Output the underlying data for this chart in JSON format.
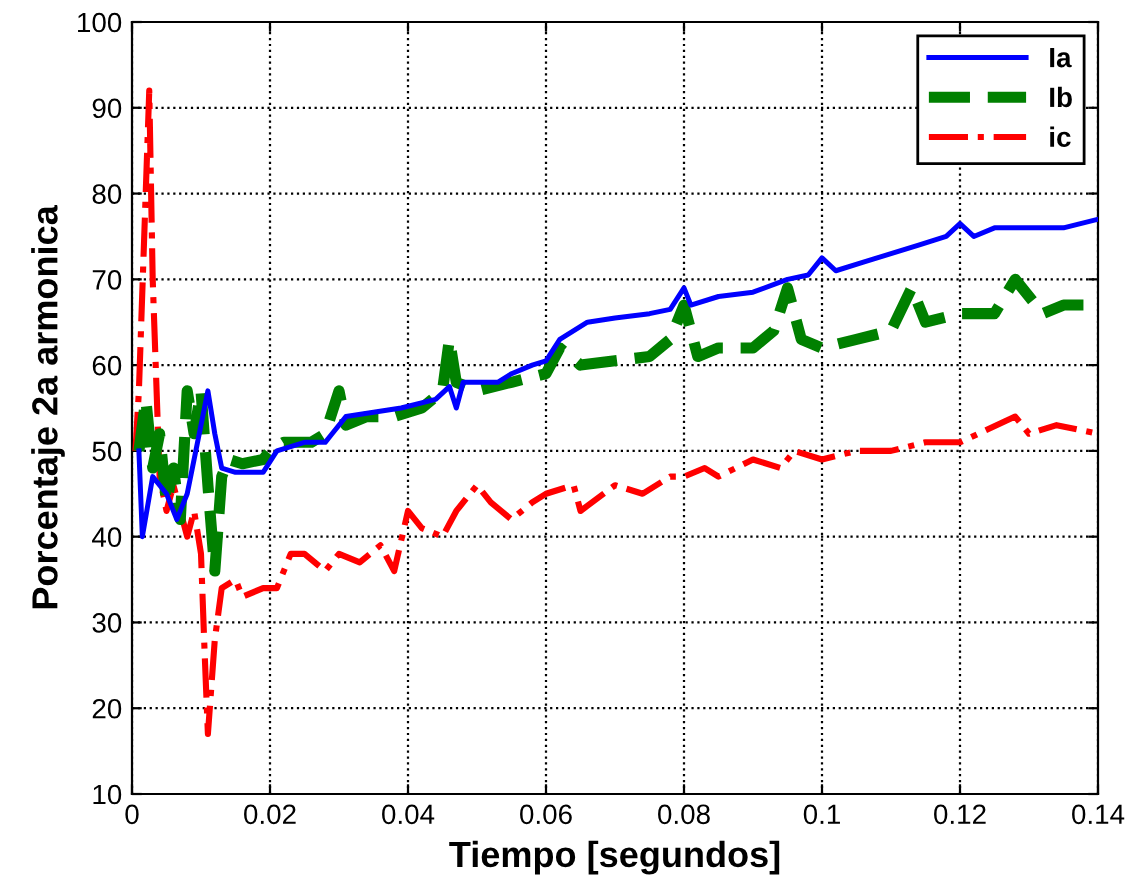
{
  "chart_data": {
    "type": "line",
    "xlabel": "Tiempo [segundos]",
    "ylabel": "Porcentaje 2a armonica",
    "xlim": [
      0,
      0.14
    ],
    "ylim": [
      10,
      100
    ],
    "xticks": [
      0,
      0.02,
      0.04,
      0.06,
      0.08,
      0.1,
      0.12,
      0.14
    ],
    "yticks": [
      10,
      20,
      30,
      40,
      50,
      60,
      70,
      80,
      90,
      100
    ],
    "grid": true,
    "legend": "top right",
    "marker": "none",
    "series": [
      {
        "name": "Ia",
        "color": "#0000ff",
        "line_style": "solid",
        "x": [
          0.001,
          0.0015,
          0.003,
          0.005,
          0.0065,
          0.008,
          0.011,
          0.012,
          0.013,
          0.015,
          0.019,
          0.021,
          0.025,
          0.028,
          0.029,
          0.031,
          0.035,
          0.039,
          0.044,
          0.046,
          0.047,
          0.048,
          0.053,
          0.055,
          0.058,
          0.06,
          0.062,
          0.066,
          0.07,
          0.075,
          0.078,
          0.08,
          0.081,
          0.085,
          0.09,
          0.095,
          0.098,
          0.1,
          0.102,
          0.106,
          0.11,
          0.114,
          0.118,
          0.12,
          0.122,
          0.125,
          0.13,
          0.135,
          0.14
        ],
        "values": [
          50,
          40,
          47,
          45,
          42,
          45,
          57,
          52,
          48,
          47.5,
          47.5,
          50,
          51,
          51,
          52,
          54,
          54.5,
          55,
          56,
          57.5,
          55,
          58,
          58,
          59,
          60,
          60.5,
          63,
          65,
          65.5,
          66,
          66.5,
          69,
          67,
          68,
          68.5,
          70,
          70.5,
          72.5,
          71,
          72,
          73,
          74,
          75,
          76.5,
          75,
          76,
          76,
          76,
          77
        ]
      },
      {
        "name": "Ib",
        "color": "#008000",
        "line_style": "dashed",
        "x": [
          0.001,
          0.002,
          0.003,
          0.004,
          0.005,
          0.006,
          0.007,
          0.008,
          0.009,
          0.01,
          0.011,
          0.012,
          0.013,
          0.014,
          0.016,
          0.019,
          0.02,
          0.022,
          0.026,
          0.028,
          0.03,
          0.031,
          0.034,
          0.038,
          0.042,
          0.045,
          0.046,
          0.047,
          0.05,
          0.055,
          0.06,
          0.062,
          0.065,
          0.07,
          0.075,
          0.078,
          0.08,
          0.082,
          0.085,
          0.09,
          0.093,
          0.095,
          0.097,
          0.1,
          0.105,
          0.11,
          0.113,
          0.115,
          0.12,
          0.125,
          0.128,
          0.132,
          0.135,
          0.14
        ],
        "values": [
          50,
          56,
          48,
          52,
          44,
          48,
          42,
          57,
          52,
          57,
          46,
          36,
          47,
          49,
          48.5,
          49,
          50,
          51,
          51,
          52,
          57,
          53,
          54,
          54,
          55,
          57,
          63,
          58,
          57,
          58,
          59,
          62,
          60,
          60.5,
          61,
          63,
          67,
          61,
          62,
          62,
          64,
          69,
          63,
          62,
          63,
          64,
          69,
          65,
          66,
          66,
          70,
          66,
          67,
          67
        ]
      },
      {
        "name": "ic",
        "color": "#ff0000",
        "line_style": "dashdot",
        "x": [
          0.0005,
          0.001,
          0.0025,
          0.003,
          0.004,
          0.005,
          0.006,
          0.008,
          0.009,
          0.01,
          0.0105,
          0.011,
          0.012,
          0.013,
          0.015,
          0.016,
          0.019,
          0.021,
          0.023,
          0.025,
          0.028,
          0.03,
          0.033,
          0.036,
          0.038,
          0.04,
          0.042,
          0.045,
          0.047,
          0.05,
          0.052,
          0.055,
          0.058,
          0.06,
          0.064,
          0.065,
          0.07,
          0.074,
          0.078,
          0.08,
          0.083,
          0.085,
          0.09,
          0.094,
          0.096,
          0.1,
          0.105,
          0.11,
          0.115,
          0.12,
          0.128,
          0.13,
          0.134,
          0.14
        ],
        "values": [
          50,
          57,
          92,
          70,
          47,
          43,
          46,
          40,
          43,
          38,
          27,
          17,
          28,
          34,
          35,
          33,
          34,
          34,
          38,
          38,
          36,
          38,
          37,
          39,
          36,
          43,
          41,
          40,
          43,
          46,
          44,
          42,
          44,
          45,
          46,
          43,
          46,
          45,
          47,
          47,
          48,
          47,
          49,
          48,
          50,
          49,
          50,
          50,
          51,
          51,
          54,
          52,
          53,
          52
        ]
      }
    ]
  }
}
